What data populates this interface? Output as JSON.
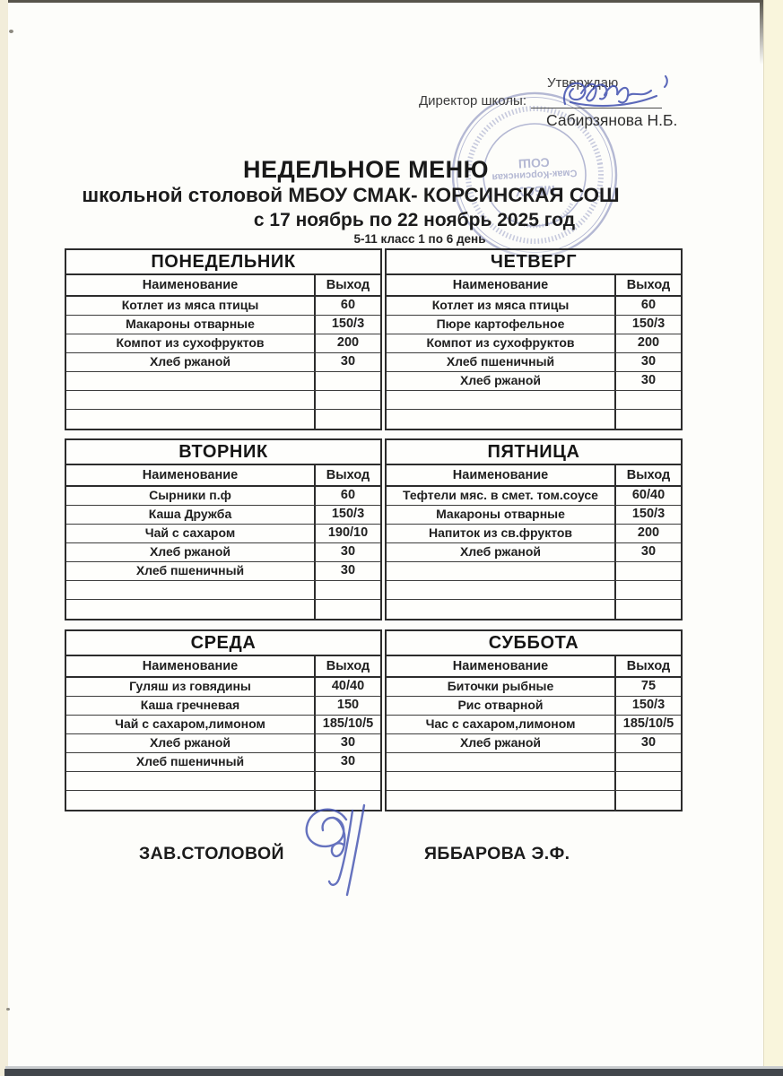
{
  "approval": {
    "approve_label": "Утверждаю",
    "director_label": "Директор школы:",
    "director_name": "Сабирзянова Н.Б."
  },
  "stamp": {
    "line1": "МБОУ",
    "line2": "Смак-Корсинская",
    "line3": "СОШ"
  },
  "titles": {
    "main": "НЕДЕЛЬНОЕ МЕНЮ",
    "subtitle": "школьной столовой МБОУ СМАК- КОРСИНСКАЯ СОШ",
    "date_range": "с  17 ноябрь по 22 ноябрь 2025 год",
    "class_line": "5-11 класс  1 по 6 день"
  },
  "table_headers": {
    "name": "Наименование",
    "out": "Выход"
  },
  "days": [
    {
      "title": "ПОНЕДЕЛЬНИК",
      "rows": [
        [
          "Котлет из мяса птицы",
          "60"
        ],
        [
          "Макароны отварные",
          "150/3"
        ],
        [
          "Компот из сухофруктов",
          "200"
        ],
        [
          "Хлеб ржаной",
          "30"
        ],
        [
          "",
          ""
        ],
        [
          "",
          ""
        ],
        [
          "",
          ""
        ]
      ]
    },
    {
      "title": "ЧЕТВЕРГ",
      "rows": [
        [
          "Котлет из мяса птицы",
          "60"
        ],
        [
          "Пюре картофельное",
          "150/3"
        ],
        [
          "Компот из сухофруктов",
          "200"
        ],
        [
          "Хлеб пшеничный",
          "30"
        ],
        [
          "Хлеб ржаной",
          "30"
        ],
        [
          "",
          ""
        ],
        [
          "",
          ""
        ]
      ]
    },
    {
      "title": "ВТОРНИК",
      "rows": [
        [
          "Сырники п.ф",
          "60"
        ],
        [
          "Каша Дружба",
          "150/3"
        ],
        [
          "Чай с сахаром",
          "190/10"
        ],
        [
          "Хлеб ржаной",
          "30"
        ],
        [
          "Хлеб пшеничный",
          "30"
        ],
        [
          "",
          ""
        ],
        [
          "",
          ""
        ]
      ]
    },
    {
      "title": "ПЯТНИЦА",
      "rows": [
        [
          "Тефтели мяс. в смет. том.соусе",
          "60/40"
        ],
        [
          "Макароны отварные",
          "150/3"
        ],
        [
          "Напиток из св.фруктов",
          "200"
        ],
        [
          "Хлеб ржаной",
          "30"
        ],
        [
          "",
          ""
        ],
        [
          "",
          ""
        ],
        [
          "",
          ""
        ]
      ]
    },
    {
      "title": "СРЕДА",
      "rows": [
        [
          "Гуляш из говядины",
          "40/40"
        ],
        [
          "Каша гречневая",
          "150"
        ],
        [
          "Чай с сахаром,лимоном",
          "185/10/5"
        ],
        [
          "Хлеб ржаной",
          "30"
        ],
        [
          "Хлеб пшеничный",
          "30"
        ],
        [
          "",
          ""
        ],
        [
          "",
          ""
        ]
      ]
    },
    {
      "title": "СУББОТА",
      "rows": [
        [
          "Биточки рыбные",
          "75"
        ],
        [
          "Рис отварной",
          "150/3"
        ],
        [
          "Час с сахаром,лимоном",
          "185/10/5"
        ],
        [
          "Хлеб ржаной",
          "30"
        ],
        [
          "",
          ""
        ],
        [
          "",
          ""
        ],
        [
          "",
          ""
        ]
      ]
    }
  ],
  "footer": {
    "zav_label": "ЗАВ.СТОЛОВОЙ",
    "zav_name": "ЯББАРОВА Э.Ф."
  },
  "colors": {
    "ink_blue": "#4050b0",
    "stamp_blue": "#7a81b4",
    "table_border": "#2c2c2c"
  }
}
